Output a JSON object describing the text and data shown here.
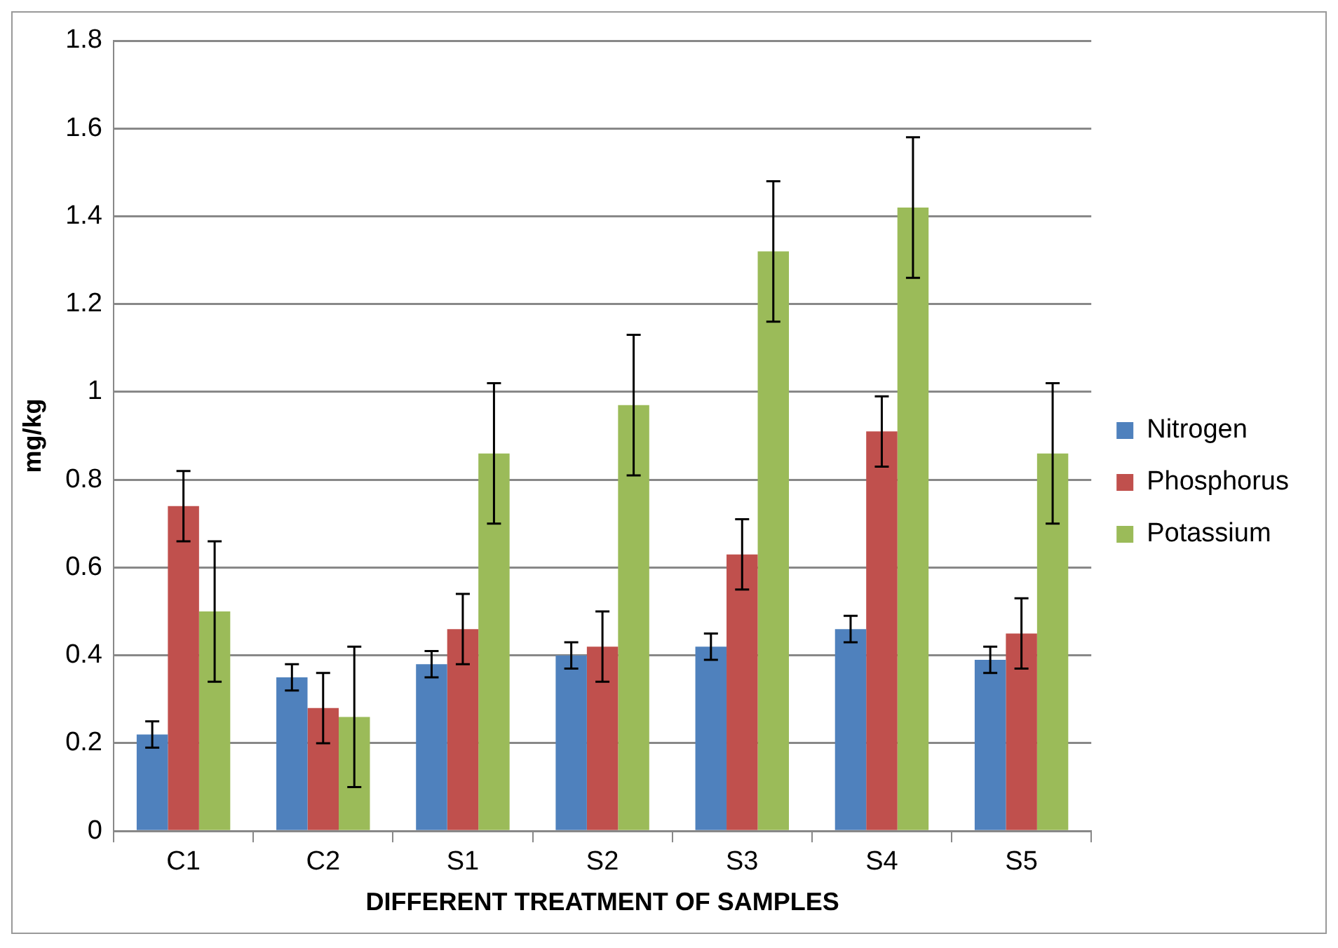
{
  "chart_data": {
    "type": "bar",
    "xlabel": "DIFFERENT TREATMENT OF SAMPLES",
    "ylabel": "mg/kg",
    "categories": [
      "C1",
      "C2",
      "S1",
      "S2",
      "S3",
      "S4",
      "S5"
    ],
    "series": [
      {
        "name": "Nitrogen",
        "color": "#4f81bd",
        "values": [
          0.22,
          0.35,
          0.38,
          0.4,
          0.42,
          0.46,
          0.39
        ],
        "errors": [
          0.03,
          0.03,
          0.03,
          0.03,
          0.03,
          0.03,
          0.03
        ]
      },
      {
        "name": "Phosphorus",
        "color": "#c0504d",
        "values": [
          0.74,
          0.28,
          0.46,
          0.42,
          0.63,
          0.91,
          0.45
        ],
        "errors": [
          0.08,
          0.08,
          0.08,
          0.08,
          0.08,
          0.08,
          0.08
        ]
      },
      {
        "name": "Potassium",
        "color": "#9bbb59",
        "values": [
          0.5,
          0.26,
          0.86,
          0.97,
          1.32,
          1.42,
          0.86
        ],
        "errors": [
          0.16,
          0.16,
          0.16,
          0.16,
          0.16,
          0.16,
          0.16
        ]
      }
    ],
    "ylim": [
      0,
      1.8
    ],
    "yticks": [
      0,
      0.2,
      0.4,
      0.6,
      0.8,
      1,
      1.2,
      1.4,
      1.6,
      1.8
    ],
    "grid": "y",
    "legend": "right"
  }
}
